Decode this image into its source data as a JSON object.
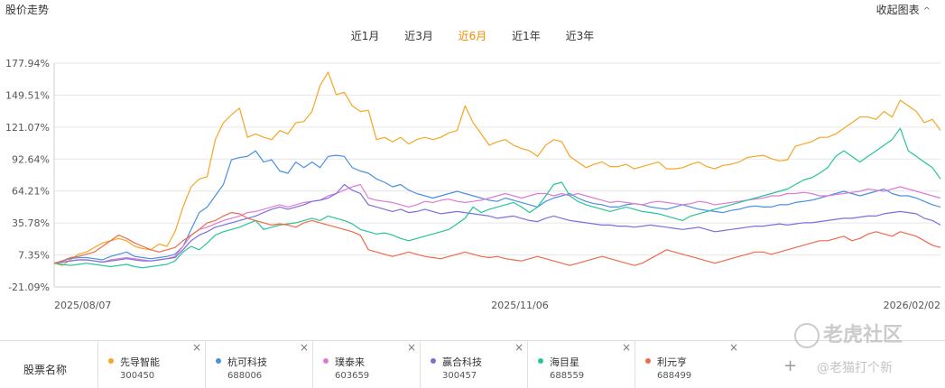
{
  "header": {
    "title": "股价走势",
    "collapse_label": "收起图表"
  },
  "tabs": [
    {
      "label": "近1月",
      "active": false
    },
    {
      "label": "近3月",
      "active": false
    },
    {
      "label": "近6月",
      "active": true
    },
    {
      "label": "近1年",
      "active": false
    },
    {
      "label": "近3年",
      "active": false
    }
  ],
  "legend": {
    "label": "股票名称",
    "stocks": [
      {
        "name": "先导智能",
        "code": "300450",
        "color": "#f5a623"
      },
      {
        "name": "杭可科技",
        "code": "688006",
        "color": "#4a90e2"
      },
      {
        "name": "璞泰来",
        "code": "603659",
        "color": "#e07bd0"
      },
      {
        "name": "赢合科技",
        "code": "300457",
        "color": "#7b6fe0"
      },
      {
        "name": "海目星",
        "code": "688559",
        "color": "#26c49a"
      },
      {
        "name": "利元亨",
        "code": "688499",
        "color": "#f06a4a"
      }
    ],
    "add_label": "+"
  },
  "watermark": {
    "brand": "老虎社区",
    "handle": "@老猫打个新"
  },
  "chart_data": {
    "type": "line",
    "y_ticks": [
      "177.94%",
      "149.51%",
      "121.07%",
      "92.64%",
      "64.21%",
      "35.78%",
      "7.35%",
      "-21.09%"
    ],
    "ylim": [
      -21.09,
      177.94
    ],
    "x_ticks": [
      "2025/08/07",
      "2025/11/06",
      "2026/02/02"
    ],
    "grid": true,
    "series": [
      {
        "name": "先导智能",
        "color": "#f5a623",
        "values": [
          0,
          -2,
          3,
          8,
          10,
          14,
          18,
          20,
          22,
          20,
          15,
          13,
          12,
          17,
          15,
          28,
          50,
          68,
          75,
          77,
          110,
          125,
          132,
          138,
          112,
          115,
          112,
          110,
          118,
          115,
          125,
          126,
          135,
          158,
          170,
          150,
          152,
          140,
          135,
          136,
          110,
          112,
          108,
          112,
          106,
          110,
          112,
          110,
          112,
          116,
          118,
          140,
          125,
          115,
          105,
          108,
          110,
          105,
          102,
          100,
          95,
          105,
          110,
          108,
          95,
          90,
          85,
          88,
          90,
          86,
          86,
          88,
          84,
          86,
          88,
          90,
          84,
          84,
          85,
          88,
          90,
          86,
          84,
          87,
          88,
          90,
          94,
          95,
          96,
          93,
          91,
          92,
          104,
          106,
          108,
          112,
          112,
          115,
          120,
          125,
          130,
          130,
          128,
          135,
          130,
          145,
          140,
          135,
          125,
          128,
          118
        ]
      },
      {
        "name": "杭可科技",
        "color": "#4a90e2",
        "values": [
          0,
          2,
          4,
          5,
          5,
          4,
          3,
          6,
          8,
          10,
          6,
          5,
          4,
          5,
          6,
          8,
          15,
          30,
          45,
          50,
          60,
          70,
          92,
          94,
          95,
          100,
          90,
          92,
          82,
          80,
          90,
          85,
          90,
          85,
          95,
          96,
          95,
          85,
          82,
          80,
          75,
          72,
          68,
          70,
          65,
          62,
          60,
          58,
          60,
          62,
          64,
          62,
          60,
          58,
          56,
          55,
          58,
          56,
          54,
          52,
          50,
          55,
          58,
          60,
          62,
          58,
          55,
          53,
          52,
          50,
          50,
          52,
          53,
          52,
          50,
          49,
          48,
          50,
          52,
          50,
          48,
          47,
          46,
          45,
          47,
          48,
          50,
          51,
          50,
          50,
          52,
          52,
          54,
          55,
          56,
          58,
          60,
          62,
          64,
          62,
          60,
          62,
          64,
          66,
          62,
          60,
          60,
          58,
          55,
          52,
          50
        ]
      },
      {
        "name": "璞泰来",
        "color": "#e07bd0",
        "values": [
          0,
          1,
          2,
          3,
          3,
          2,
          1,
          3,
          4,
          5,
          4,
          3,
          2,
          3,
          4,
          6,
          15,
          25,
          30,
          32,
          35,
          38,
          40,
          42,
          45,
          46,
          48,
          50,
          52,
          50,
          52,
          54,
          55,
          56,
          60,
          62,
          65,
          68,
          70,
          58,
          56,
          55,
          54,
          52,
          50,
          52,
          55,
          54,
          56,
          57,
          55,
          54,
          55,
          56,
          58,
          60,
          62,
          60,
          58,
          60,
          62,
          62,
          60,
          62,
          60,
          62,
          60,
          58,
          56,
          54,
          55,
          54,
          53,
          52,
          54,
          55,
          54,
          53,
          52,
          53,
          55,
          54,
          52,
          53,
          54,
          55,
          56,
          57,
          58,
          60,
          60,
          62,
          62,
          63,
          62,
          60,
          60,
          61,
          62,
          63,
          64,
          66,
          65,
          64,
          66,
          68,
          66,
          64,
          62,
          60,
          58
        ]
      },
      {
        "name": "赢合科技",
        "color": "#7b6fe0",
        "values": [
          0,
          1,
          2,
          3,
          3,
          2,
          1,
          2,
          3,
          4,
          3,
          2,
          2,
          3,
          4,
          5,
          12,
          20,
          25,
          28,
          32,
          34,
          36,
          38,
          40,
          42,
          45,
          48,
          50,
          48,
          50,
          52,
          55,
          56,
          58,
          62,
          70,
          65,
          62,
          52,
          50,
          48,
          46,
          48,
          45,
          46,
          48,
          46,
          44,
          45,
          46,
          45,
          44,
          43,
          42,
          40,
          41,
          42,
          40,
          38,
          37,
          40,
          42,
          40,
          38,
          37,
          36,
          35,
          34,
          34,
          33,
          33,
          32,
          33,
          34,
          33,
          32,
          31,
          30,
          31,
          32,
          30,
          28,
          29,
          30,
          31,
          32,
          33,
          33,
          34,
          35,
          34,
          35,
          36,
          36,
          37,
          38,
          39,
          40,
          40,
          41,
          42,
          42,
          44,
          45,
          46,
          45,
          44,
          40,
          38,
          34
        ]
      },
      {
        "name": "海目星",
        "color": "#26c49a",
        "values": [
          0,
          -1,
          -2,
          -1,
          0,
          -1,
          -2,
          -3,
          -2,
          -1,
          -3,
          -4,
          -3,
          -2,
          -1,
          2,
          10,
          15,
          12,
          18,
          25,
          28,
          30,
          32,
          35,
          38,
          30,
          32,
          34,
          35,
          36,
          38,
          40,
          38,
          42,
          40,
          38,
          35,
          30,
          28,
          26,
          27,
          25,
          22,
          20,
          22,
          24,
          26,
          28,
          30,
          35,
          40,
          50,
          45,
          48,
          50,
          52,
          54,
          50,
          45,
          50,
          60,
          70,
          72,
          60,
          55,
          52,
          50,
          48,
          46,
          48,
          50,
          48,
          46,
          45,
          44,
          42,
          40,
          38,
          42,
          44,
          46,
          48,
          50,
          52,
          54,
          56,
          58,
          60,
          62,
          64,
          66,
          70,
          74,
          76,
          80,
          85,
          95,
          100,
          95,
          90,
          95,
          100,
          105,
          110,
          120,
          100,
          95,
          90,
          85,
          75
        ]
      },
      {
        "name": "利元亨",
        "color": "#f06a4a",
        "values": [
          0,
          2,
          5,
          6,
          8,
          10,
          15,
          20,
          25,
          22,
          18,
          15,
          12,
          10,
          12,
          14,
          20,
          25,
          30,
          36,
          38,
          42,
          45,
          44,
          40,
          38,
          36,
          34,
          35,
          34,
          32,
          36,
          38,
          36,
          34,
          32,
          30,
          28,
          25,
          12,
          10,
          8,
          6,
          8,
          10,
          8,
          6,
          5,
          4,
          6,
          8,
          10,
          8,
          6,
          5,
          6,
          4,
          3,
          2,
          4,
          6,
          4,
          2,
          0,
          -2,
          0,
          2,
          4,
          6,
          4,
          2,
          0,
          -2,
          0,
          4,
          8,
          12,
          10,
          8,
          6,
          4,
          2,
          0,
          2,
          4,
          6,
          8,
          10,
          10,
          8,
          10,
          12,
          14,
          16,
          18,
          20,
          20,
          22,
          24,
          20,
          22,
          26,
          28,
          26,
          24,
          28,
          26,
          24,
          20,
          16,
          14
        ]
      }
    ]
  }
}
